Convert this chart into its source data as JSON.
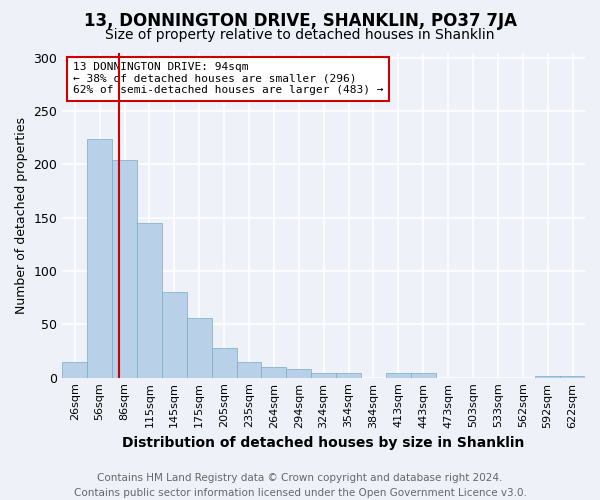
{
  "title": "13, DONNINGTON DRIVE, SHANKLIN, PO37 7JA",
  "subtitle": "Size of property relative to detached houses in Shanklin",
  "xlabel": "Distribution of detached houses by size in Shanklin",
  "ylabel": "Number of detached properties",
  "footer_line1": "Contains HM Land Registry data © Crown copyright and database right 2024.",
  "footer_line2": "Contains public sector information licensed under the Open Government Licence v3.0.",
  "bin_labels": [
    "26sqm",
    "56sqm",
    "86sqm",
    "115sqm",
    "145sqm",
    "175sqm",
    "205sqm",
    "235sqm",
    "264sqm",
    "294sqm",
    "324sqm",
    "354sqm",
    "384sqm",
    "413sqm",
    "443sqm",
    "473sqm",
    "503sqm",
    "533sqm",
    "562sqm",
    "592sqm",
    "622sqm"
  ],
  "bar_values": [
    15,
    224,
    204,
    145,
    80,
    56,
    28,
    15,
    10,
    8,
    4,
    4,
    0,
    4,
    4,
    0,
    0,
    0,
    0,
    2,
    2
  ],
  "bar_color": "#b8d0e8",
  "bar_edge_color": "#7aaac8",
  "vline_color": "#cc0000",
  "annotation_text": "13 DONNINGTON DRIVE: 94sqm\n← 38% of detached houses are smaller (296)\n62% of semi-detached houses are larger (483) →",
  "annotation_box_color": "#ffffff",
  "annotation_box_edge": "#cc0000",
  "ylim": [
    0,
    305
  ],
  "yticks": [
    0,
    50,
    100,
    150,
    200,
    250,
    300
  ],
  "background_color": "#eef2f8",
  "grid_color": "#ffffff",
  "title_fontsize": 12,
  "subtitle_fontsize": 10,
  "xlabel_fontsize": 10,
  "ylabel_fontsize": 9,
  "tick_fontsize": 8,
  "footer_fontsize": 7.5
}
